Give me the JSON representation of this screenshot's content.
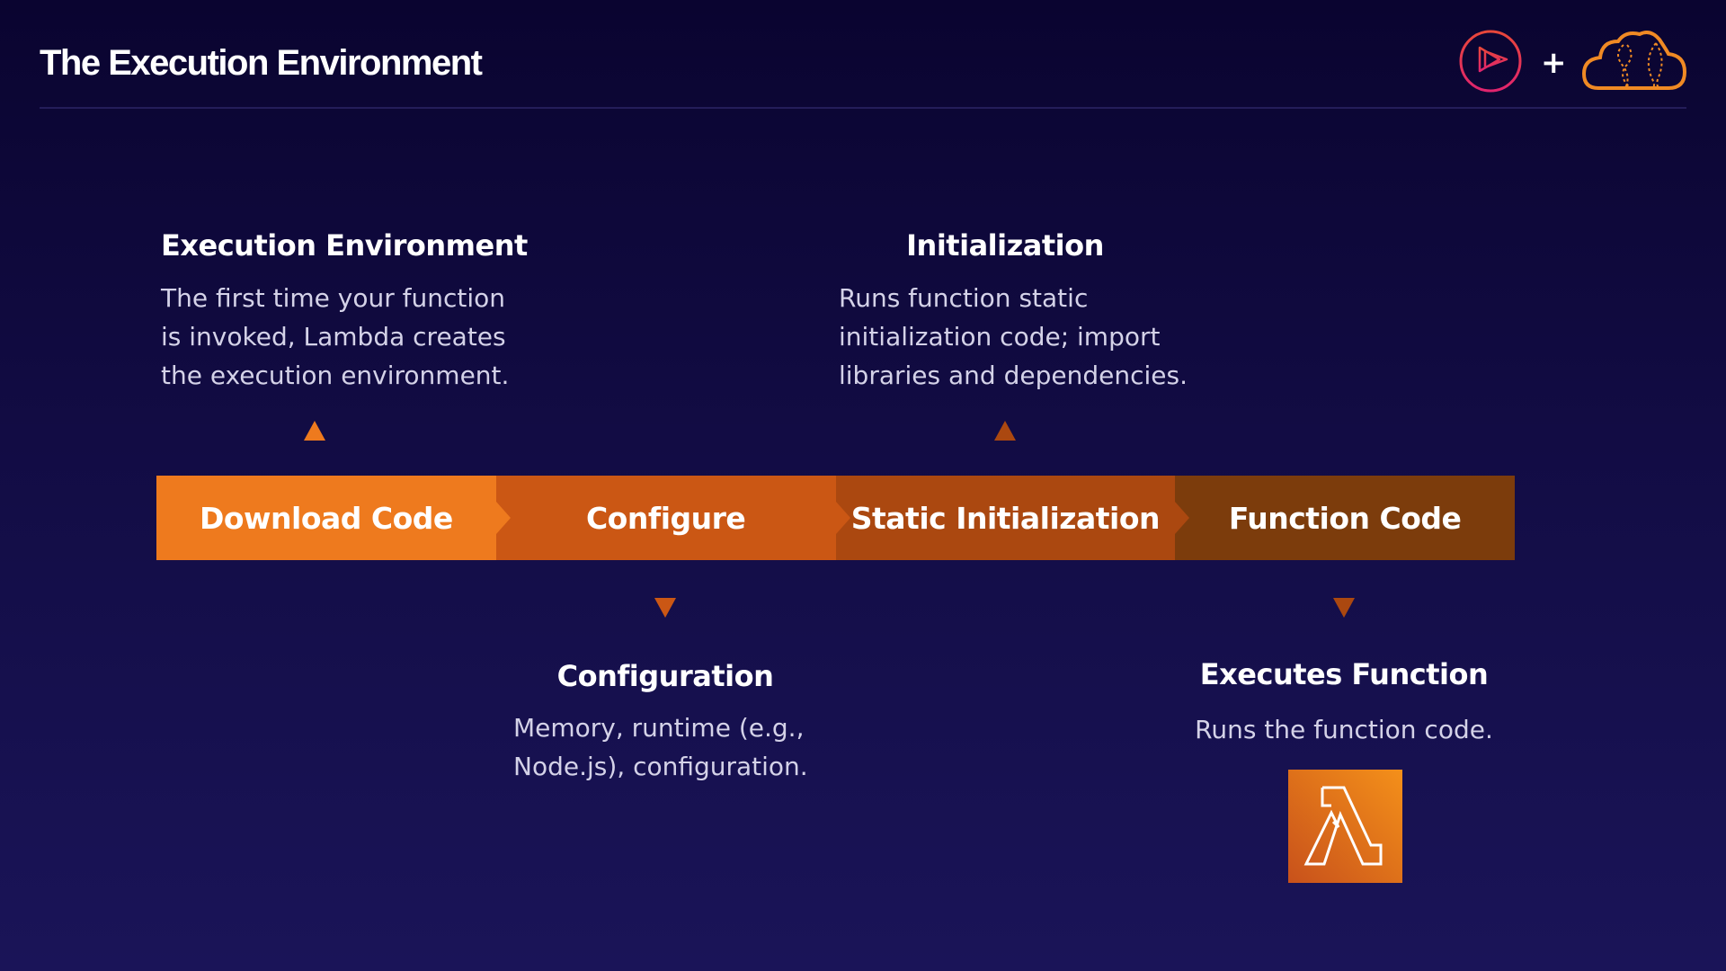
{
  "header": {
    "title": "The Execution Environment",
    "plus": "+",
    "logos": [
      "play-logo-icon",
      "cloud-logo-icon"
    ]
  },
  "steps": [
    {
      "label": "Download Code",
      "color": "#EE7A1E"
    },
    {
      "label": "Configure",
      "color": "#CB5714"
    },
    {
      "label": "Static Initialization",
      "color": "#AB4810"
    },
    {
      "label": "Function Code",
      "color": "#7C3C0C"
    }
  ],
  "callouts": {
    "execution_environment": {
      "heading": "Execution Environment",
      "lines": [
        "The first time your function",
        "is invoked, Lambda creates",
        "the execution environment."
      ]
    },
    "initialization": {
      "heading": "Initialization",
      "lines": [
        "Runs function static",
        "initialization code; import",
        "libraries and dependencies."
      ]
    },
    "configuration": {
      "heading": "Configuration",
      "lines": [
        "Memory, runtime (e.g.,",
        "Node.js), configuration."
      ]
    },
    "executes_function": {
      "heading": "Executes Function",
      "lines": [
        "Runs the function code."
      ]
    }
  },
  "icons": {
    "lambda": "lambda-icon"
  }
}
